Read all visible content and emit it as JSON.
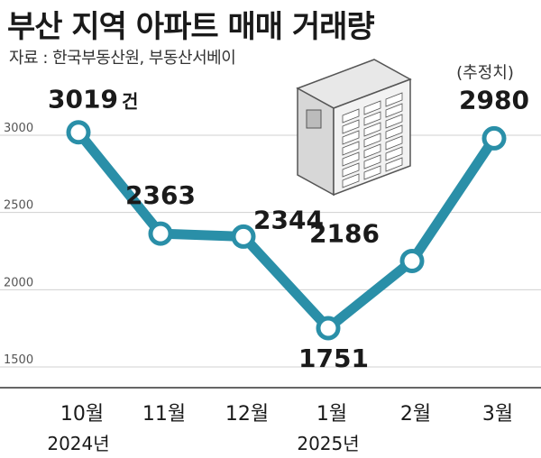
{
  "title": "부산 지역 아파트 매매 거래량",
  "source": "자료 : 한국부동산원, 부동산서베이",
  "chart_data": {
    "type": "line",
    "categories": [
      "10월",
      "11월",
      "12월",
      "1월",
      "2월",
      "3월"
    ],
    "year_labels": [
      "2024년",
      "",
      "",
      "2025년",
      "",
      ""
    ],
    "values": [
      3019,
      2363,
      2344,
      1751,
      2186,
      2980
    ],
    "value_labels": [
      "3019",
      "2363",
      "2344",
      "1751",
      "2186",
      "2980"
    ],
    "first_value_unit": "건",
    "estimate_note": "(추정치)",
    "y_ticks": [
      "3000",
      "2500",
      "2000",
      "1500"
    ],
    "ylim": [
      1500,
      3000
    ],
    "grid": true,
    "line_color": "#2a8fa8",
    "marker_fill": "#ffffff",
    "icon": "apartment-building-icon"
  }
}
